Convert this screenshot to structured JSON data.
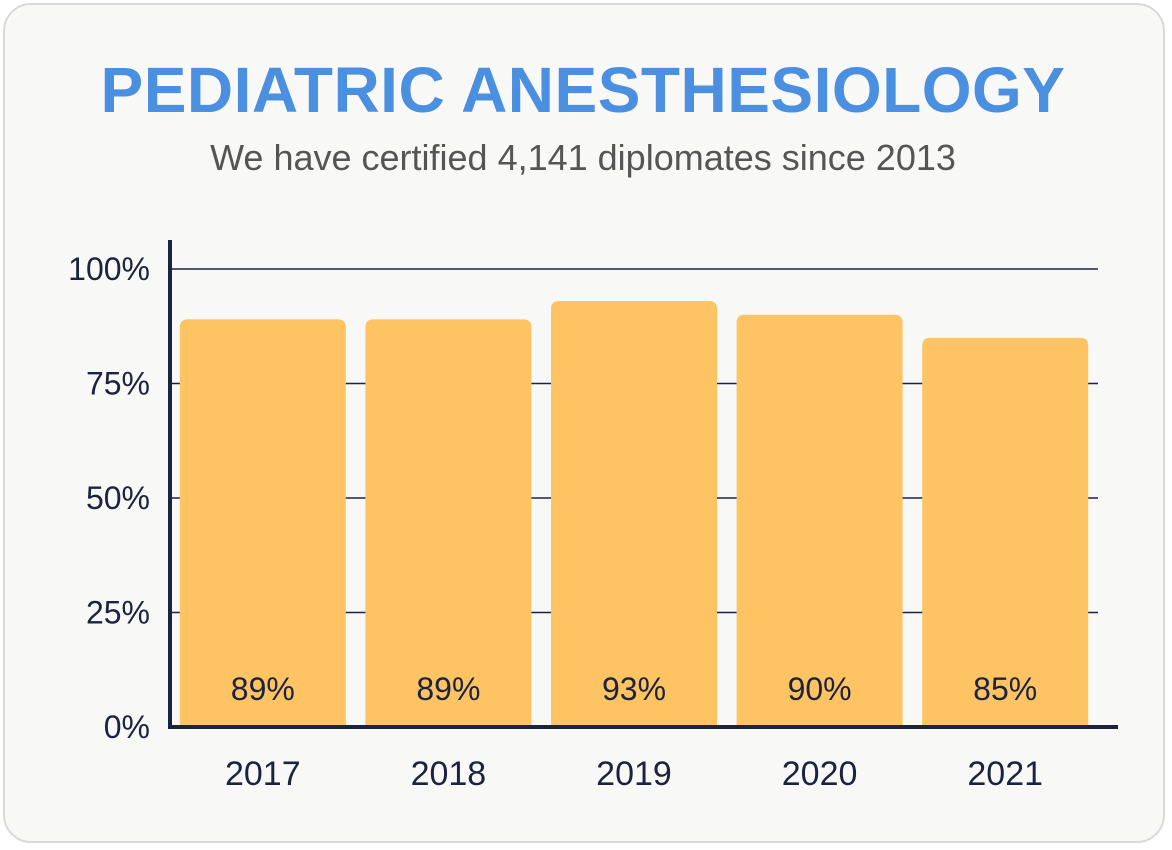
{
  "chart_data": {
    "type": "bar",
    "title": "PEDIATRIC ANESTHESIOLOGY",
    "subtitle": "We have certified 4,141 diplomates since 2013",
    "categories": [
      "2017",
      "2018",
      "2019",
      "2020",
      "2021"
    ],
    "values": [
      89,
      89,
      93,
      90,
      85
    ],
    "value_labels": [
      "89%",
      "89%",
      "93%",
      "90%",
      "85%"
    ],
    "ylim": [
      0,
      100
    ],
    "yticks": [
      0,
      25,
      50,
      75,
      100
    ],
    "ytick_labels": [
      "0%",
      "25%",
      "50%",
      "75%",
      "100%"
    ],
    "xlabel": "",
    "ylabel": "",
    "grid": true,
    "colors": {
      "bar": "#fec362",
      "title": "#4a8fe0",
      "axis": "#1c2340",
      "subtitle": "#555555"
    }
  }
}
